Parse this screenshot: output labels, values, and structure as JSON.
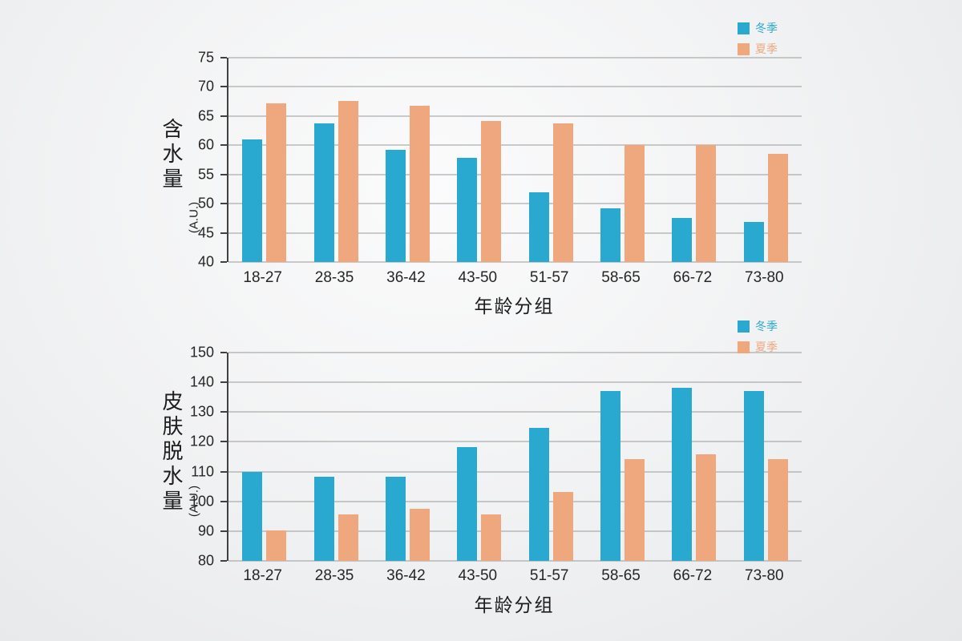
{
  "colors": {
    "winter": "#2aa9d0",
    "summer": "#efa77e",
    "grid": "#9a9a9a",
    "axis": "#414141"
  },
  "chart_data": [
    {
      "type": "bar",
      "title": "",
      "ylabel": "含水量",
      "ylabel_unit": "(A.U.)",
      "xlabel": "年龄分组",
      "categories": [
        "18-27",
        "28-35",
        "36-42",
        "43-50",
        "51-57",
        "58-65",
        "66-72",
        "73-80"
      ],
      "series": [
        {
          "name": "冬季",
          "color": "#2aa9d0",
          "values": [
            61,
            63.7,
            59.2,
            57.8,
            52,
            49.2,
            47.5,
            46.8
          ]
        },
        {
          "name": "夏季",
          "color": "#efa77e",
          "values": [
            67.2,
            67.6,
            66.8,
            64.2,
            63.7,
            60,
            60,
            58.5
          ]
        }
      ],
      "ylim": [
        40,
        75
      ],
      "ytick_step": 5,
      "grid": true,
      "legend_position": "top-right"
    },
    {
      "type": "bar",
      "title": "",
      "ylabel": "皮肤脱水量",
      "ylabel_unit": "(A.U.)",
      "xlabel": "年龄分组",
      "categories": [
        "18-27",
        "28-35",
        "36-42",
        "43-50",
        "51-57",
        "58-65",
        "66-72",
        "73-80"
      ],
      "series": [
        {
          "name": "冬季",
          "color": "#2aa9d0",
          "values": [
            110,
            108.3,
            108.3,
            118.3,
            124.8,
            137,
            138.2,
            137
          ]
        },
        {
          "name": "夏季",
          "color": "#efa77e",
          "values": [
            90.3,
            95.5,
            97.6,
            95.5,
            103.2,
            114.3,
            115.7,
            114.3
          ]
        }
      ],
      "ylim": [
        80,
        150
      ],
      "ytick_step": 10,
      "grid": true,
      "legend_position": "top-right"
    }
  ]
}
